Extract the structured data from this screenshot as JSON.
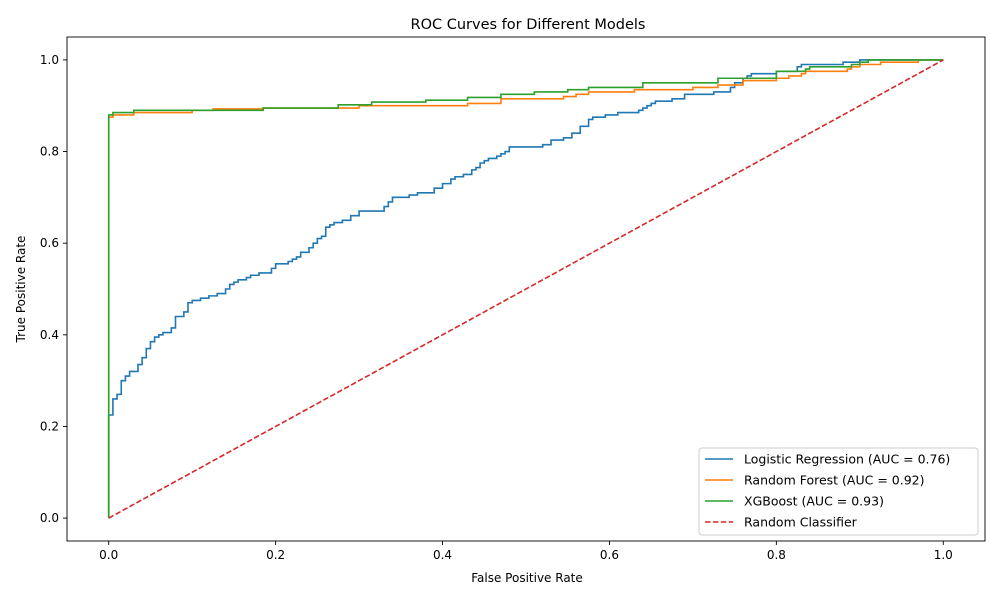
{
  "chart_data": {
    "type": "line",
    "title": "ROC Curves for Different Models",
    "xlabel": "False Positive Rate",
    "ylabel": "True Positive Rate",
    "xlim": [
      -0.05,
      1.05
    ],
    "ylim": [
      -0.05,
      1.05
    ],
    "xticks": [
      "0.0",
      "0.2",
      "0.4",
      "0.6",
      "0.8",
      "1.0"
    ],
    "yticks": [
      "0.0",
      "0.2",
      "0.4",
      "0.6",
      "0.8",
      "1.0"
    ],
    "grid": false,
    "legend_position": "bottom-right",
    "series": [
      {
        "name": "Logistic Regression (AUC = 0.76)",
        "color": "#1f77b4",
        "style": "step",
        "points": [
          [
            0,
            0
          ],
          [
            0,
            0.21
          ],
          [
            0.005,
            0.225
          ],
          [
            0.01,
            0.26
          ],
          [
            0.015,
            0.27
          ],
          [
            0.02,
            0.3
          ],
          [
            0.025,
            0.31
          ],
          [
            0.035,
            0.32
          ],
          [
            0.04,
            0.335
          ],
          [
            0.045,
            0.35
          ],
          [
            0.05,
            0.37
          ],
          [
            0.055,
            0.385
          ],
          [
            0.06,
            0.395
          ],
          [
            0.065,
            0.4
          ],
          [
            0.075,
            0.405
          ],
          [
            0.08,
            0.415
          ],
          [
            0.09,
            0.44
          ],
          [
            0.095,
            0.45
          ],
          [
            0.1,
            0.47
          ],
          [
            0.11,
            0.475
          ],
          [
            0.12,
            0.48
          ],
          [
            0.13,
            0.485
          ],
          [
            0.14,
            0.49
          ],
          [
            0.145,
            0.5
          ],
          [
            0.15,
            0.51
          ],
          [
            0.155,
            0.515
          ],
          [
            0.165,
            0.52
          ],
          [
            0.17,
            0.525
          ],
          [
            0.18,
            0.53
          ],
          [
            0.195,
            0.535
          ],
          [
            0.2,
            0.545
          ],
          [
            0.215,
            0.555
          ],
          [
            0.22,
            0.56
          ],
          [
            0.225,
            0.565
          ],
          [
            0.23,
            0.57
          ],
          [
            0.24,
            0.58
          ],
          [
            0.245,
            0.59
          ],
          [
            0.25,
            0.6
          ],
          [
            0.255,
            0.61
          ],
          [
            0.26,
            0.615
          ],
          [
            0.265,
            0.635
          ],
          [
            0.27,
            0.64
          ],
          [
            0.28,
            0.645
          ],
          [
            0.29,
            0.65
          ],
          [
            0.3,
            0.66
          ],
          [
            0.33,
            0.67
          ],
          [
            0.335,
            0.68
          ],
          [
            0.34,
            0.69
          ],
          [
            0.36,
            0.7
          ],
          [
            0.37,
            0.705
          ],
          [
            0.39,
            0.71
          ],
          [
            0.4,
            0.72
          ],
          [
            0.41,
            0.73
          ],
          [
            0.415,
            0.74
          ],
          [
            0.425,
            0.745
          ],
          [
            0.435,
            0.75
          ],
          [
            0.44,
            0.76
          ],
          [
            0.445,
            0.765
          ],
          [
            0.45,
            0.775
          ],
          [
            0.455,
            0.78
          ],
          [
            0.465,
            0.785
          ],
          [
            0.47,
            0.79
          ],
          [
            0.475,
            0.795
          ],
          [
            0.48,
            0.8
          ],
          [
            0.485,
            0.81
          ],
          [
            0.52,
            0.81
          ],
          [
            0.53,
            0.815
          ],
          [
            0.545,
            0.825
          ],
          [
            0.555,
            0.83
          ],
          [
            0.565,
            0.84
          ],
          [
            0.575,
            0.855
          ],
          [
            0.58,
            0.87
          ],
          [
            0.595,
            0.875
          ],
          [
            0.61,
            0.88
          ],
          [
            0.635,
            0.885
          ],
          [
            0.64,
            0.89
          ],
          [
            0.645,
            0.895
          ],
          [
            0.65,
            0.9
          ],
          [
            0.655,
            0.905
          ],
          [
            0.675,
            0.91
          ],
          [
            0.69,
            0.915
          ],
          [
            0.725,
            0.925
          ],
          [
            0.745,
            0.93
          ],
          [
            0.75,
            0.94
          ],
          [
            0.76,
            0.95
          ],
          [
            0.765,
            0.96
          ],
          [
            0.77,
            0.965
          ],
          [
            0.8,
            0.97
          ],
          [
            0.825,
            0.975
          ],
          [
            0.83,
            0.985
          ],
          [
            0.88,
            0.99
          ],
          [
            0.9,
            0.995
          ],
          [
            1.0,
            1.0
          ]
        ]
      },
      {
        "name": "Random Forest (AUC = 0.92)",
        "color": "#ff7f0e",
        "style": "step",
        "points": [
          [
            0,
            0
          ],
          [
            0,
            0.865
          ],
          [
            0.005,
            0.875
          ],
          [
            0.03,
            0.88
          ],
          [
            0.1,
            0.885
          ],
          [
            0.125,
            0.89
          ],
          [
            0.185,
            0.893
          ],
          [
            0.3,
            0.895
          ],
          [
            0.43,
            0.9
          ],
          [
            0.47,
            0.905
          ],
          [
            0.545,
            0.915
          ],
          [
            0.56,
            0.92
          ],
          [
            0.575,
            0.925
          ],
          [
            0.63,
            0.93
          ],
          [
            0.7,
            0.935
          ],
          [
            0.73,
            0.94
          ],
          [
            0.76,
            0.945
          ],
          [
            0.8,
            0.955
          ],
          [
            0.815,
            0.96
          ],
          [
            0.83,
            0.965
          ],
          [
            0.835,
            0.97
          ],
          [
            0.885,
            0.975
          ],
          [
            0.89,
            0.98
          ],
          [
            0.9,
            0.985
          ],
          [
            0.925,
            0.99
          ],
          [
            0.97,
            0.995
          ],
          [
            1.0,
            1.0
          ]
        ]
      },
      {
        "name": "XGBoost (AUC = 0.93)",
        "color": "#2ca02c",
        "style": "step",
        "points": [
          [
            0,
            0
          ],
          [
            0,
            0.87
          ],
          [
            0.005,
            0.88
          ],
          [
            0.03,
            0.885
          ],
          [
            0.185,
            0.89
          ],
          [
            0.275,
            0.895
          ],
          [
            0.315,
            0.902
          ],
          [
            0.38,
            0.908
          ],
          [
            0.43,
            0.912
          ],
          [
            0.47,
            0.918
          ],
          [
            0.51,
            0.925
          ],
          [
            0.55,
            0.93
          ],
          [
            0.575,
            0.935
          ],
          [
            0.64,
            0.94
          ],
          [
            0.73,
            0.95
          ],
          [
            0.8,
            0.96
          ],
          [
            0.835,
            0.975
          ],
          [
            0.84,
            0.98
          ],
          [
            0.89,
            0.985
          ],
          [
            0.9,
            0.99
          ],
          [
            0.91,
            0.995
          ],
          [
            0.96,
            1.0
          ],
          [
            1.0,
            1.0
          ]
        ]
      },
      {
        "name": "Random Classifier",
        "color": "#d62728",
        "style": "dashed",
        "points": [
          [
            0,
            0
          ],
          [
            1,
            1
          ]
        ]
      }
    ]
  }
}
